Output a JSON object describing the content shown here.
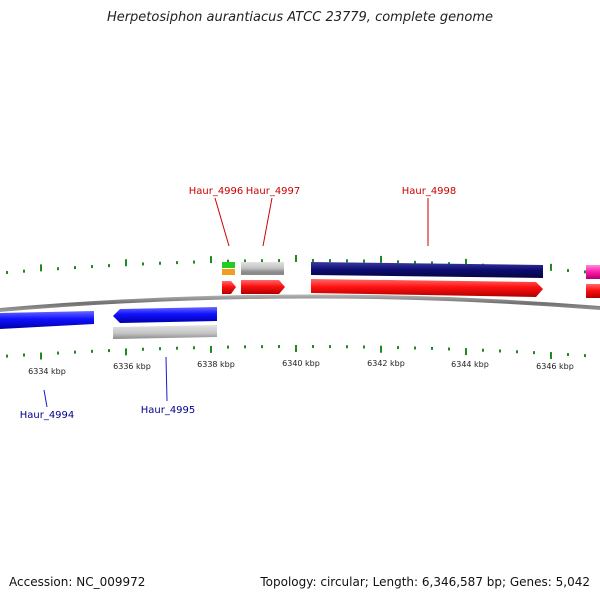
{
  "title": "Herpetosiphon aurantiacus ATCC 23779, complete genome",
  "accession": "Accession: NC_009972",
  "summary": "Topology: circular; Length: 6,346,587 bp; Genes: 5,042",
  "scale": {
    "ticks": [
      {
        "label": "6334 kbp"
      },
      {
        "label": "6336 kbp"
      },
      {
        "label": "6338 kbp"
      },
      {
        "label": "6340 kbp"
      },
      {
        "label": "6342 kbp"
      },
      {
        "label": "6344 kbp"
      },
      {
        "label": "6346 kbp"
      }
    ]
  },
  "genes": [
    {
      "locus": "Haur_4994",
      "strand": "reverse",
      "color": "#1a1ae6"
    },
    {
      "locus": "Haur_4995",
      "strand": "reverse",
      "color": "#1a1ae6"
    },
    {
      "locus": "Haur_4996",
      "strand": "forward",
      "color": "#ff1a1a"
    },
    {
      "locus": "Haur_4997",
      "strand": "forward",
      "color": "#ff1a1a"
    },
    {
      "locus": "Haur_4998",
      "strand": "forward",
      "color": "#ff1a1a"
    }
  ],
  "colors": {
    "forward_label": "#cc0000",
    "reverse_label": "#00008b",
    "tick": "#1f8a1f",
    "backbone": "#808080"
  }
}
